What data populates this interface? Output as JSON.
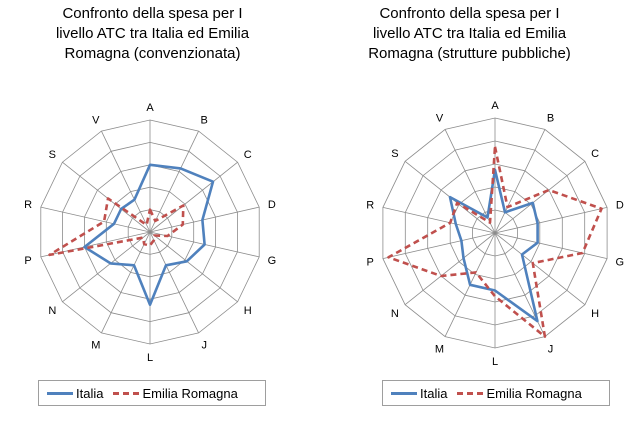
{
  "chart_data": [
    {
      "type": "radar",
      "title": "Confronto della spesa per I\nlivello ATC tra Italia ed Emilia\nRomagna (convenzionata)",
      "categories": [
        "A",
        "B",
        "C",
        "D",
        "G",
        "H",
        "J",
        "L",
        "M",
        "N",
        "P",
        "R",
        "S",
        "V"
      ],
      "rlim": [
        0,
        1
      ],
      "rings": 5,
      "grid": true,
      "legend_position": "bottom",
      "series": [
        {
          "name": "Italia",
          "color": "#4f81bd",
          "style": "solid",
          "values": [
            0.6,
            0.63,
            0.72,
            0.48,
            0.5,
            0.42,
            0.33,
            0.65,
            0.33,
            0.45,
            0.6,
            0.33,
            0.33,
            0.32
          ]
        },
        {
          "name": "Emilia Romagna",
          "color": "#c0504d",
          "style": "dashed",
          "values": [
            0.2,
            0.11,
            0.38,
            0.3,
            0.16,
            0.05,
            0.08,
            0.12,
            0.12,
            0.08,
            0.92,
            0.42,
            0.48,
            0.07
          ]
        }
      ]
    },
    {
      "type": "radar",
      "title": "Confronto della spesa per I\nlivello ATC tra Italia ed Emilia\nRomagna (strutture pubbliche)",
      "categories": [
        "A",
        "B",
        "C",
        "D",
        "G",
        "H",
        "J",
        "L",
        "M",
        "N",
        "P",
        "R",
        "S",
        "V"
      ],
      "rlim": [
        0,
        1
      ],
      "rings": 5,
      "grid": true,
      "legend_position": "bottom",
      "series": [
        {
          "name": "Italia",
          "color": "#4f81bd",
          "style": "solid",
          "values": [
            0.55,
            0.2,
            0.42,
            0.38,
            0.38,
            0.3,
            0.85,
            0.5,
            0.5,
            0.35,
            0.3,
            0.35,
            0.5,
            0.15
          ]
        },
        {
          "name": "Emilia Romagna",
          "color": "#c0504d",
          "style": "dashed",
          "values": [
            0.75,
            0.25,
            0.6,
            0.95,
            0.78,
            0.42,
            1.0,
            0.55,
            0.38,
            0.6,
            0.95,
            0.4,
            0.42,
            0.1
          ]
        }
      ]
    }
  ]
}
